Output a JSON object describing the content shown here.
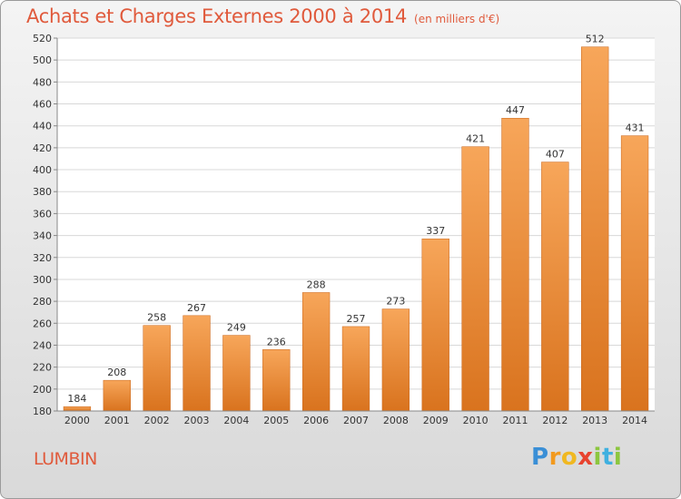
{
  "header": {
    "title": "Achats et Charges Externes 2000 à 2014",
    "subtitle": "(en milliers d'€)"
  },
  "commune": "LUMBIN",
  "logo": {
    "text": "Proxiti",
    "letters": [
      "P",
      "r",
      "o",
      "x",
      "i",
      "t",
      "i"
    ],
    "colors": [
      "#3a8fd6",
      "#f29a1f",
      "#f0b821",
      "#e8432f",
      "#8cc63f",
      "#3fb0e0",
      "#8cc63f"
    ]
  },
  "colors": {
    "title": "#e05a3c",
    "bar_light": "#f7a65a",
    "bar_dark": "#d9731e",
    "grid": "#d8d8d8"
  },
  "chart_data": {
    "type": "bar",
    "title": "Achats et Charges Externes 2000 à 2014",
    "subtitle": "(en milliers d'€)",
    "categories": [
      "2000",
      "2001",
      "2002",
      "2003",
      "2004",
      "2005",
      "2006",
      "2007",
      "2008",
      "2009",
      "2010",
      "2011",
      "2012",
      "2013",
      "2014"
    ],
    "values": [
      184,
      208,
      258,
      267,
      249,
      236,
      288,
      257,
      273,
      337,
      421,
      447,
      407,
      512,
      431
    ],
    "data_labels": [
      "184",
      "208",
      "258",
      "267",
      "249",
      "236",
      "288",
      "257",
      "273",
      "337",
      "421",
      "447",
      "407",
      "512",
      "431"
    ],
    "ylim": [
      180,
      520
    ],
    "yticks": [
      180,
      200,
      220,
      240,
      260,
      280,
      300,
      320,
      340,
      360,
      380,
      400,
      420,
      440,
      460,
      480,
      500,
      520
    ],
    "ytick_labels": [
      "180",
      "200",
      "220",
      "240",
      "260",
      "280",
      "300",
      "320",
      "340",
      "360",
      "380",
      "400",
      "420",
      "440",
      "460",
      "480",
      "500",
      "520"
    ],
    "grid": true,
    "legend": "none"
  }
}
